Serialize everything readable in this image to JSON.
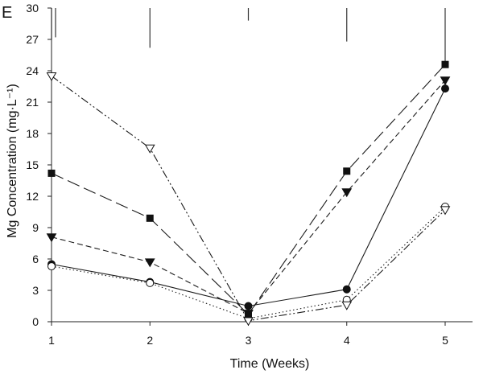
{
  "chart_data": {
    "type": "line",
    "panel_label": "E",
    "title": "",
    "xlabel": "Time (Weeks)",
    "ylabel": "Mg Concentration (mg·L⁻¹)",
    "x": [
      1,
      2,
      3,
      4,
      5
    ],
    "xlim": [
      1,
      5.4
    ],
    "ylim": [
      0,
      30
    ],
    "xticks": [
      "1",
      "2",
      "3",
      "4",
      "5"
    ],
    "yticks": [
      "0",
      "3",
      "6",
      "9",
      "12",
      "15",
      "18",
      "21",
      "24",
      "27",
      "30"
    ],
    "grid": false,
    "legend": "none",
    "series": [
      {
        "name": "filled-circle",
        "marker": "circle-filled",
        "dash": "solid",
        "values": [
          5.5,
          3.8,
          1.5,
          3.1,
          22.3
        ]
      },
      {
        "name": "open-circle",
        "marker": "circle-open",
        "dash": "dotted",
        "values": [
          5.3,
          3.7,
          0.3,
          2.1,
          11.0
        ]
      },
      {
        "name": "filled-triangle-down",
        "marker": "triangle-down-filled",
        "dash": "dashed",
        "values": [
          8.1,
          5.7,
          0.8,
          12.4,
          23.1
        ]
      },
      {
        "name": "open-triangle-down",
        "marker": "triangle-down-open",
        "dash": "dash-dot",
        "values": [
          23.5,
          16.6,
          0.1,
          1.6,
          10.7
        ]
      },
      {
        "name": "filled-square",
        "marker": "square-filled",
        "dash": "long-dash",
        "values": [
          14.2,
          9.9,
          0.7,
          14.4,
          24.6
        ]
      }
    ],
    "indicator_lines": [
      {
        "x": 1,
        "y_from": 30,
        "y_to": 27
      },
      {
        "x": 1,
        "y_from": 30,
        "y_to": 27.2
      },
      {
        "x": 2,
        "y_from": 30,
        "y_to": 26.2
      },
      {
        "x": 3,
        "y_from": 30,
        "y_to": 28.8
      },
      {
        "x": 4,
        "y_from": 30,
        "y_to": 26.8
      },
      {
        "x": 5,
        "y_from": 30,
        "y_to": 24.5
      }
    ]
  }
}
